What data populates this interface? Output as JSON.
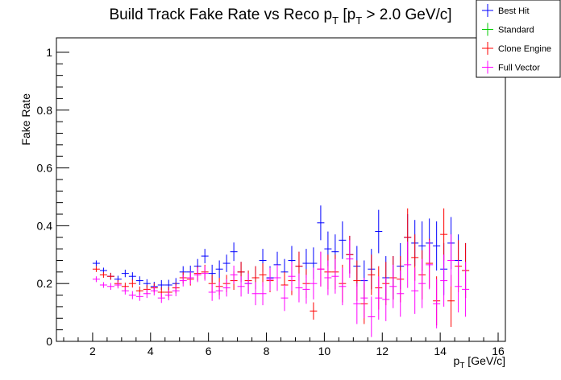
{
  "chart_data": {
    "type": "scatter",
    "title": "Build Track Fake Rate vs Reco p",
    "title_sub1": "T",
    "title_mid": " [p",
    "title_sub2": "T",
    "title_end": " > 2.0 GeV/c]",
    "xlabel": "p",
    "xlabel_sub": "T",
    "xlabel_unit": " [GeV/c]",
    "ylabel": "Fake Rate",
    "xlim": [
      0.75,
      16.25
    ],
    "ylim": [
      0,
      1.05
    ],
    "x_ticks": [
      2,
      4,
      6,
      8,
      10,
      12,
      14,
      16
    ],
    "y_ticks": [
      0,
      0.2,
      0.4,
      0.6,
      0.8,
      1
    ],
    "y_tick_labels": [
      "0",
      "0.2",
      "0.4",
      "0.6",
      "0.8",
      "1"
    ],
    "grid": false,
    "legend_position": "top-right",
    "x_bin_half_width": 0.125,
    "series": [
      {
        "name": "Best Hit",
        "color": "#0000ff",
        "x": [
          2.125,
          2.375,
          2.625,
          2.875,
          3.125,
          3.375,
          3.625,
          3.875,
          4.125,
          4.375,
          4.625,
          4.875,
          5.125,
          5.375,
          5.625,
          5.875,
          6.125,
          6.375,
          6.625,
          6.875,
          7.125,
          7.375,
          7.625,
          7.875,
          8.125,
          8.375,
          8.625,
          8.875,
          9.125,
          9.375,
          9.625,
          9.875,
          10.125,
          10.375,
          10.625,
          10.875,
          11.125,
          11.375,
          11.625,
          11.875,
          12.125,
          12.375,
          12.625,
          12.875,
          13.125,
          13.375,
          13.625,
          13.875,
          14.125,
          14.375,
          14.625,
          14.875
        ],
        "y": [
          0.27,
          0.245,
          0.225,
          0.215,
          0.235,
          0.225,
          0.21,
          0.2,
          0.19,
          0.195,
          0.195,
          0.2,
          0.24,
          0.24,
          0.26,
          0.295,
          0.235,
          0.25,
          0.27,
          0.31,
          0.24,
          0.2,
          0.22,
          0.28,
          0.22,
          0.265,
          0.24,
          0.28,
          0.26,
          0.27,
          0.27,
          0.41,
          0.32,
          0.31,
          0.35,
          0.3,
          0.26,
          0.21,
          0.25,
          0.38,
          0.22,
          0.22,
          0.26,
          0.36,
          0.34,
          0.33,
          0.34,
          0.33,
          0.25,
          0.34,
          0.28,
          0.245
        ],
        "err": [
          0.01,
          0.01,
          0.012,
          0.012,
          0.013,
          0.014,
          0.015,
          0.015,
          0.016,
          0.017,
          0.018,
          0.019,
          0.02,
          0.022,
          0.025,
          0.025,
          0.03,
          0.03,
          0.03,
          0.032,
          0.035,
          0.035,
          0.04,
          0.04,
          0.04,
          0.045,
          0.045,
          0.05,
          0.05,
          0.05,
          0.055,
          0.06,
          0.06,
          0.06,
          0.065,
          0.065,
          0.07,
          0.07,
          0.07,
          0.075,
          0.075,
          0.075,
          0.08,
          0.08,
          0.08,
          0.085,
          0.085,
          0.085,
          0.09,
          0.09,
          0.09,
          0.095
        ]
      },
      {
        "name": "Standard",
        "color": "#00cc00",
        "x": [],
        "y": [],
        "err": []
      },
      {
        "name": "Clone Engine",
        "color": "#ff0000",
        "x": [
          2.125,
          2.375,
          2.625,
          2.875,
          3.125,
          3.375,
          3.625,
          3.875,
          4.125,
          4.375,
          4.625,
          4.875,
          5.125,
          5.375,
          5.625,
          5.875,
          6.125,
          6.375,
          6.625,
          6.875,
          7.125,
          7.375,
          7.625,
          7.875,
          8.125,
          8.375,
          8.625,
          8.875,
          9.125,
          9.375,
          9.625,
          9.875,
          10.125,
          10.375,
          10.625,
          10.875,
          11.125,
          11.375,
          11.625,
          11.875,
          12.125,
          12.375,
          12.625,
          12.875,
          13.125,
          13.375,
          13.625,
          13.875,
          14.125,
          14.375,
          14.625,
          14.875
        ],
        "y": [
          0.25,
          0.23,
          0.225,
          0.2,
          0.19,
          0.2,
          0.175,
          0.18,
          0.185,
          0.17,
          0.17,
          0.185,
          0.22,
          0.215,
          0.235,
          0.24,
          0.2,
          0.19,
          0.2,
          0.21,
          0.24,
          0.21,
          0.22,
          0.23,
          0.21,
          0.22,
          0.195,
          0.21,
          0.26,
          0.2,
          0.105,
          0.25,
          0.24,
          0.24,
          0.2,
          0.3,
          0.21,
          0.13,
          0.23,
          0.185,
          0.2,
          0.22,
          0.215,
          0.36,
          0.29,
          0.23,
          0.27,
          0.14,
          0.37,
          0.14,
          0.26,
          0.245
        ],
        "err": [
          0.01,
          0.01,
          0.012,
          0.012,
          0.013,
          0.014,
          0.015,
          0.015,
          0.016,
          0.017,
          0.018,
          0.019,
          0.02,
          0.022,
          0.025,
          0.025,
          0.03,
          0.03,
          0.03,
          0.032,
          0.035,
          0.035,
          0.04,
          0.04,
          0.04,
          0.045,
          0.045,
          0.05,
          0.05,
          0.05,
          0.03,
          0.06,
          0.06,
          0.06,
          0.065,
          0.065,
          0.07,
          0.07,
          0.07,
          0.075,
          0.075,
          0.075,
          0.08,
          0.1,
          0.08,
          0.085,
          0.085,
          0.085,
          0.09,
          0.09,
          0.09,
          0.095
        ]
      },
      {
        "name": "Full Vector",
        "color": "#ff00ff",
        "x": [
          2.125,
          2.375,
          2.625,
          2.875,
          3.125,
          3.375,
          3.625,
          3.875,
          4.125,
          4.375,
          4.625,
          4.875,
          5.125,
          5.375,
          5.625,
          5.875,
          6.125,
          6.375,
          6.625,
          6.875,
          7.125,
          7.375,
          7.625,
          7.875,
          8.125,
          8.375,
          8.625,
          8.875,
          9.125,
          9.375,
          9.625,
          9.875,
          10.125,
          10.375,
          10.625,
          10.875,
          11.125,
          11.375,
          11.625,
          11.875,
          12.125,
          12.375,
          12.625,
          12.875,
          13.125,
          13.375,
          13.625,
          13.875,
          14.125,
          14.375,
          14.625,
          14.875
        ],
        "y": [
          0.215,
          0.195,
          0.19,
          0.195,
          0.175,
          0.16,
          0.155,
          0.165,
          0.175,
          0.15,
          0.16,
          0.175,
          0.21,
          0.22,
          0.23,
          0.235,
          0.17,
          0.175,
          0.185,
          0.23,
          0.19,
          0.2,
          0.165,
          0.165,
          0.215,
          0.22,
          0.15,
          0.225,
          0.185,
          0.18,
          0.2,
          0.25,
          0.22,
          0.225,
          0.19,
          0.285,
          0.13,
          0.15,
          0.085,
          0.15,
          0.145,
          0.19,
          0.165,
          0.265,
          0.175,
          0.2,
          0.265,
          0.13,
          0.21,
          0.28,
          0.19,
          0.18
        ],
        "err": [
          0.01,
          0.01,
          0.012,
          0.012,
          0.013,
          0.014,
          0.015,
          0.015,
          0.016,
          0.017,
          0.018,
          0.019,
          0.02,
          0.022,
          0.025,
          0.025,
          0.03,
          0.03,
          0.03,
          0.032,
          0.035,
          0.035,
          0.04,
          0.04,
          0.04,
          0.045,
          0.045,
          0.05,
          0.05,
          0.05,
          0.055,
          0.06,
          0.06,
          0.06,
          0.065,
          0.065,
          0.07,
          0.07,
          0.07,
          0.075,
          0.075,
          0.075,
          0.08,
          0.08,
          0.08,
          0.085,
          0.085,
          0.085,
          0.09,
          0.09,
          0.09,
          0.095
        ]
      }
    ]
  }
}
